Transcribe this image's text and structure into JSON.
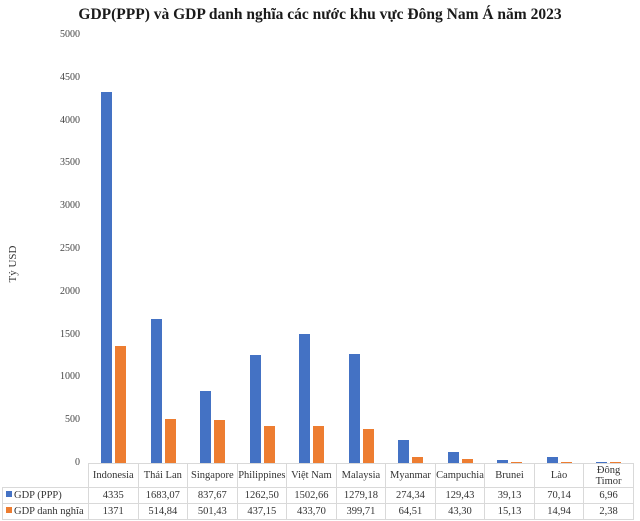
{
  "chart_data": {
    "type": "bar",
    "title": "GDP(PPP) và GDP danh nghĩa các nước khu vực Đông Nam Á năm 2023",
    "xlabel": "",
    "ylabel": "Tỷ USD",
    "ylim": [
      0,
      5000
    ],
    "yticks": [
      "0",
      "500",
      "1000",
      "1500",
      "2000",
      "2500",
      "3000",
      "3500",
      "4000",
      "4500",
      "5000"
    ],
    "grid": false,
    "legend_position": "data-table-left",
    "categories": [
      "Indonesia",
      "Thái Lan",
      "Singapore",
      "Philippines",
      "Việt Nam",
      "Malaysia",
      "Myanmar",
      "Campuchia",
      "Brunei",
      "Lào",
      "Đông Timor"
    ],
    "series": [
      {
        "name": "GDP (PPP)",
        "color": "#4472C4",
        "values": [
          4335,
          1683.07,
          837.67,
          1262.5,
          1502.66,
          1279.18,
          274.34,
          129.43,
          39.13,
          70.14,
          6.96
        ],
        "labels": [
          "4335",
          "1683,07",
          "837,67",
          "1262,50",
          "1502,66",
          "1279,18",
          "274,34",
          "129,43",
          "39,13",
          "70,14",
          "6,96"
        ]
      },
      {
        "name": "GDP danh nghĩa",
        "color": "#ED7D31",
        "values": [
          1371,
          514.84,
          501.43,
          437.15,
          433.7,
          399.71,
          64.51,
          43.3,
          15.13,
          14.94,
          2.38
        ],
        "labels": [
          "1371",
          "514,84",
          "501,43",
          "437,15",
          "433,70",
          "399,71",
          "64,51",
          "43,30",
          "15,13",
          "14,94",
          "2,38"
        ]
      }
    ]
  }
}
